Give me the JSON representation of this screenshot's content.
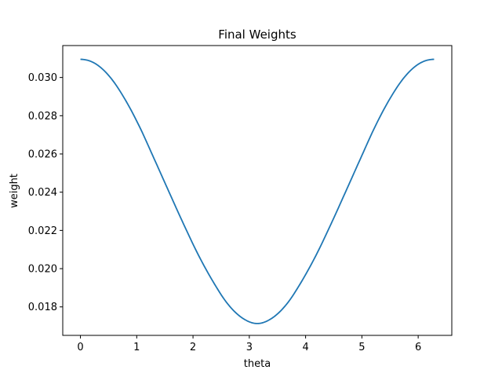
{
  "chart_data": {
    "type": "line",
    "title": "Final Weights",
    "xlabel": "theta",
    "ylabel": "weight",
    "xlim": [
      -0.3142,
      6.5973
    ],
    "ylim": [
      0.01651,
      0.03167
    ],
    "xticks": [
      0,
      1,
      2,
      3,
      4,
      5,
      6
    ],
    "xtick_labels": [
      "0",
      "1",
      "2",
      "3",
      "4",
      "5",
      "6"
    ],
    "yticks": [
      0.018,
      0.02,
      0.022,
      0.024,
      0.026,
      0.028,
      0.03
    ],
    "ytick_labels": [
      "0.018",
      "0.020",
      "0.022",
      "0.024",
      "0.026",
      "0.028",
      "0.030"
    ],
    "grid": false,
    "series": [
      {
        "color": "#1f77b4",
        "x": [
          0,
          0.2618,
          0.5236,
          0.7854,
          1.0472,
          1.309,
          1.5708,
          1.8326,
          2.0944,
          2.3562,
          2.618,
          2.8798,
          3.1416,
          3.4034,
          3.6652,
          3.927,
          4.1888,
          4.4506,
          4.7124,
          4.9742,
          5.236,
          5.4978,
          5.7596,
          6.0214,
          6.2832
        ],
        "values": [
          0.03095,
          0.03073,
          0.03003,
          0.02889,
          0.02744,
          0.02575,
          0.02403,
          0.02233,
          0.02072,
          0.01932,
          0.01815,
          0.01741,
          0.01713,
          0.01741,
          0.01815,
          0.01932,
          0.02072,
          0.02233,
          0.02403,
          0.02575,
          0.02744,
          0.02889,
          0.03003,
          0.03073,
          0.03095
        ]
      }
    ]
  }
}
